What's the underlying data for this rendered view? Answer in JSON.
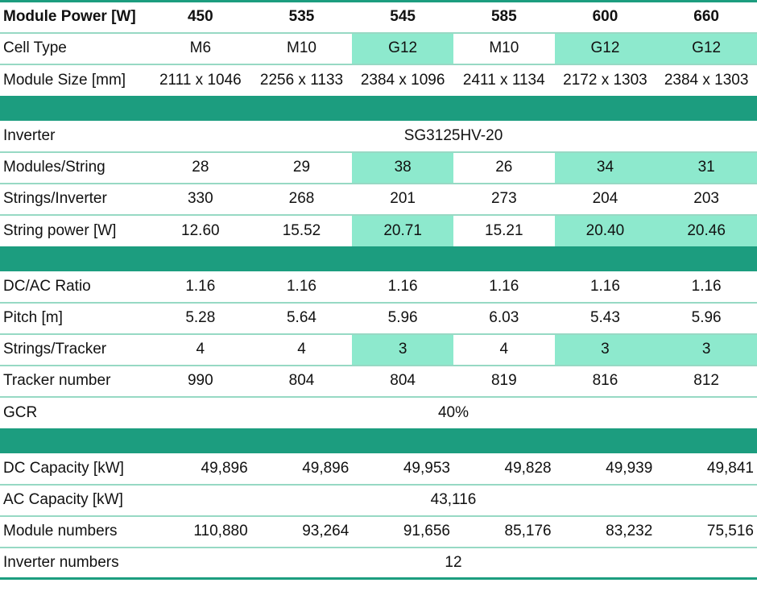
{
  "colors": {
    "band_green": "#1C9D7F",
    "highlight_mint": "#8DE9CD",
    "row_border_teal": "#97D9C4",
    "text": "#111111",
    "background": "#FFFFFF"
  },
  "table": {
    "header": {
      "label": "Module Power [W]",
      "values": [
        "450",
        "535",
        "545",
        "585",
        "600",
        "660"
      ]
    },
    "rows": [
      {
        "type": "data",
        "label": "Cell Type",
        "values": [
          "M6",
          "M10",
          "G12",
          "M10",
          "G12",
          "G12"
        ],
        "highlight": [
          2,
          4,
          5
        ]
      },
      {
        "type": "data",
        "label": "Module Size [mm]",
        "values": [
          "2111 x 1046",
          "2256 x 1133",
          "2384 x 1096",
          "2411 x 1134",
          "2172 x 1303",
          "2384 x 1303"
        ]
      },
      {
        "type": "band"
      },
      {
        "type": "span",
        "label": "Inverter",
        "value": "SG3125HV-20"
      },
      {
        "type": "data",
        "label": "Modules/String",
        "values": [
          "28",
          "29",
          "38",
          "26",
          "34",
          "31"
        ],
        "highlight": [
          2,
          4,
          5
        ]
      },
      {
        "type": "data",
        "label": "Strings/Inverter",
        "values": [
          "330",
          "268",
          "201",
          "273",
          "204",
          "203"
        ]
      },
      {
        "type": "data",
        "label": "String power [W]",
        "values": [
          "12.60",
          "15.52",
          "20.71",
          "15.21",
          "20.40",
          "20.46"
        ],
        "highlight": [
          2,
          4,
          5
        ]
      },
      {
        "type": "band"
      },
      {
        "type": "data",
        "label": "DC/AC Ratio",
        "values": [
          "1.16",
          "1.16",
          "1.16",
          "1.16",
          "1.16",
          "1.16"
        ]
      },
      {
        "type": "data",
        "label": "Pitch [m]",
        "values": [
          "5.28",
          "5.64",
          "5.96",
          "6.03",
          "5.43",
          "5.96"
        ]
      },
      {
        "type": "data",
        "label": "Strings/Tracker",
        "values": [
          "4",
          "4",
          "3",
          "4",
          "3",
          "3"
        ],
        "highlight": [
          2,
          4,
          5
        ]
      },
      {
        "type": "data",
        "label": "Tracker number",
        "values": [
          "990",
          "804",
          "804",
          "819",
          "816",
          "812"
        ]
      },
      {
        "type": "span",
        "label": "GCR",
        "value": "40%"
      },
      {
        "type": "band"
      },
      {
        "type": "data",
        "label": "DC Capacity [kW]",
        "values": [
          "49,896",
          "49,896",
          "49,953",
          "49,828",
          "49,939",
          "49,841"
        ],
        "align": "right"
      },
      {
        "type": "span",
        "label": "AC Capacity [kW]",
        "value": "43,116"
      },
      {
        "type": "data",
        "label": "Module numbers",
        "values": [
          "110,880",
          "93,264",
          "91,656",
          "85,176",
          "83,232",
          "75,516"
        ],
        "align": "right"
      },
      {
        "type": "span",
        "label": "Inverter numbers",
        "value": "12"
      }
    ]
  },
  "chart_data": {
    "type": "table",
    "columns": [
      "Module Power [W]",
      "450",
      "535",
      "545",
      "585",
      "600",
      "660"
    ],
    "rows": [
      [
        "Cell Type",
        "M6",
        "M10",
        "G12",
        "M10",
        "G12",
        "G12"
      ],
      [
        "Module Size [mm]",
        "2111 x 1046",
        "2256 x 1133",
        "2384 x 1096",
        "2411 x 1134",
        "2172 x 1303",
        "2384 x 1303"
      ],
      [
        "Inverter",
        "SG3125HV-20"
      ],
      [
        "Modules/String",
        "28",
        "29",
        "38",
        "26",
        "34",
        "31"
      ],
      [
        "Strings/Inverter",
        "330",
        "268",
        "201",
        "273",
        "204",
        "203"
      ],
      [
        "String power [W]",
        "12.60",
        "15.52",
        "20.71",
        "15.21",
        "20.40",
        "20.46"
      ],
      [
        "DC/AC Ratio",
        "1.16",
        "1.16",
        "1.16",
        "1.16",
        "1.16",
        "1.16"
      ],
      [
        "Pitch [m]",
        "5.28",
        "5.64",
        "5.96",
        "6.03",
        "5.43",
        "5.96"
      ],
      [
        "Strings/Tracker",
        "4",
        "4",
        "3",
        "4",
        "3",
        "3"
      ],
      [
        "Tracker number",
        "990",
        "804",
        "804",
        "819",
        "816",
        "812"
      ],
      [
        "GCR",
        "40%"
      ],
      [
        "DC Capacity [kW]",
        "49,896",
        "49,896",
        "49,953",
        "49,828",
        "49,939",
        "49,841"
      ],
      [
        "AC Capacity [kW]",
        "43,116"
      ],
      [
        "Module numbers",
        "110,880",
        "93,264",
        "91,656",
        "85,176",
        "83,232",
        "75,516"
      ],
      [
        "Inverter numbers",
        "12"
      ]
    ],
    "highlighted_cells_note": "Columns 545/600/660 highlighted mint for rows: Cell Type, Modules/String, String power [W], Strings/Tracker"
  }
}
